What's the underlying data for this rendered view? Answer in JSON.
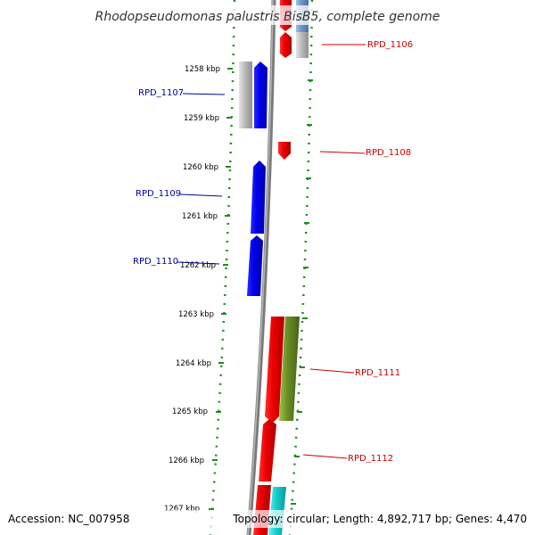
{
  "title": "Rhodopseudomonas palustris BisB5, complete genome",
  "footer": {
    "accession": "Accession: NC_007958",
    "topology": "Topology: circular; Length: 4,892,717 bp; Genes: 4,470"
  },
  "kbp_labels": [
    "1258 kbp",
    "1259 kbp",
    "1260 kbp",
    "1261 kbp",
    "1262 kbp",
    "1263 kbp",
    "1264 kbp",
    "1265 kbp",
    "1266 kbp",
    "1267 kbp"
  ],
  "genes": {
    "left": [
      {
        "label": "RPD_1107",
        "color": "#0000aa"
      },
      {
        "label": "RPD_1109",
        "color": "#0000aa"
      },
      {
        "label": "RPD_1110",
        "color": "#0000aa"
      }
    ],
    "right": [
      {
        "label": "RPD_1106",
        "color": "#cc0000"
      },
      {
        "label": "RPD_1108",
        "color": "#cc0000"
      },
      {
        "label": "RPD_1111",
        "color": "#cc0000"
      },
      {
        "label": "RPD_1112",
        "color": "#cc0000"
      }
    ]
  },
  "colors": {
    "forward_gene": "#ff0000",
    "reverse_gene": "#0000ff",
    "pseudo_gene": "#bbbbbb",
    "olive_gene": "#6b8e23",
    "cyan_gene": "#00cccc",
    "backbone": "#888888",
    "tick": "#228b22"
  }
}
